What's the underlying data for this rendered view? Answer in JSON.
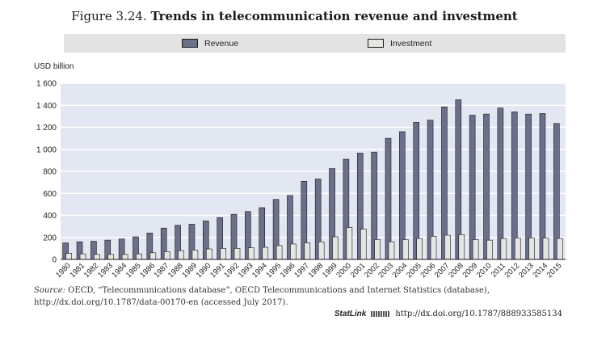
{
  "figure": {
    "number": "Figure 3.24.",
    "title": "Trends in telecommunication revenue and investment"
  },
  "legend": {
    "revenue_label": "Revenue",
    "investment_label": "Investment"
  },
  "colors": {
    "revenue": "#6b6f8a",
    "investment": "#e6e6e0",
    "plot_bg": "#e3e7f1",
    "grid": "#ffffff",
    "legend_bg": "#e3e3e3"
  },
  "source": {
    "label": "Source:",
    "text": "OECD, “Telecommunications database”, OECD Telecommunications and Internet Statistics (database), http://dx.doi.org/10.1787/data-00170-en (accessed July 2017)."
  },
  "statlink": {
    "label": "StatLink",
    "icon": "statlink-icon",
    "url": "http://dx.doi.org/10.1787/888933585134"
  },
  "chart_data": {
    "type": "bar",
    "ylabel": "USD billion",
    "ylim": [
      0,
      1600
    ],
    "yticks": [
      0,
      200,
      400,
      600,
      800,
      1000,
      1200,
      1400,
      1600
    ],
    "ytick_labels": [
      "0",
      "200",
      "400",
      "600",
      "800",
      "1 000",
      "1 200",
      "1 400",
      "1 600"
    ],
    "grid": true,
    "categories": [
      "1980",
      "1981",
      "1982",
      "1983",
      "1984",
      "1985",
      "1986",
      "1987",
      "1988",
      "1989",
      "1990",
      "1991",
      "1992",
      "1993",
      "1994",
      "1995",
      "1996",
      "1997",
      "1998",
      "1999",
      "2000",
      "2001",
      "2002",
      "2003",
      "2004",
      "2005",
      "2006",
      "2007",
      "2008",
      "2009",
      "2010",
      "2011",
      "2012",
      "2013",
      "2014",
      "2015"
    ],
    "series": [
      {
        "name": "Revenue",
        "values": [
          150,
          160,
          165,
          175,
          185,
          205,
          240,
          285,
          310,
          320,
          350,
          380,
          410,
          435,
          470,
          545,
          580,
          710,
          730,
          825,
          910,
          965,
          975,
          1100,
          1160,
          1245,
          1265,
          1385,
          1450,
          1310,
          1320,
          1375,
          1340,
          1320,
          1325,
          1235
        ]
      },
      {
        "name": "Investment",
        "values": [
          55,
          50,
          45,
          45,
          45,
          50,
          60,
          70,
          80,
          85,
          95,
          100,
          100,
          105,
          110,
          125,
          140,
          150,
          160,
          205,
          290,
          275,
          180,
          160,
          180,
          190,
          210,
          220,
          225,
          180,
          175,
          190,
          195,
          195,
          195,
          190
        ]
      }
    ]
  }
}
